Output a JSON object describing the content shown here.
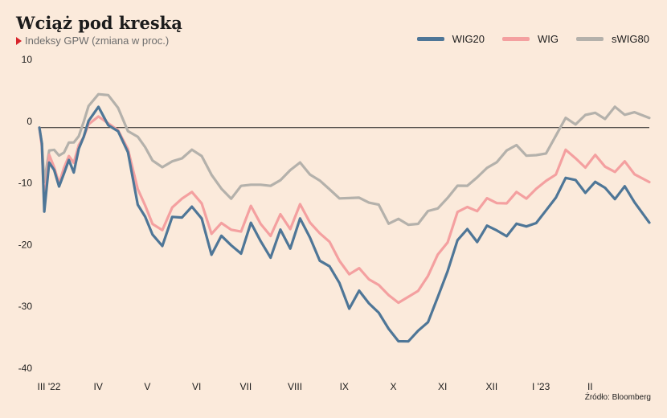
{
  "header": {
    "title": "Wciąż pod kreską",
    "subtitle": "Indeksy GPW (zmiana w proc.)"
  },
  "source": "Źródło: Bloomberg",
  "colors": {
    "wig20": "#4e7697",
    "wig": "#f4a0a0",
    "swig80": "#b4b1ab",
    "background": "#fbeadb"
  },
  "chart_data": {
    "type": "line",
    "title": "Wciąż pod kreską",
    "subtitle": "Indeksy GPW (zmiana w proc.)",
    "xlabel": "",
    "ylabel": "",
    "ylim": [
      -40,
      10
    ],
    "yticks": [
      "10",
      "0",
      "-10",
      "-20",
      "-30",
      "-40"
    ],
    "xticks": [
      "III '22",
      "IV",
      "V",
      "VI",
      "VII",
      "VIII",
      "IX",
      "X",
      "XI",
      "XII",
      "I '23",
      "II"
    ],
    "x_months": [
      0,
      1,
      2,
      3,
      4,
      5,
      6,
      7,
      8,
      9,
      10,
      11
    ],
    "grid": false,
    "zero_line": true,
    "legend": "top-right",
    "series": [
      {
        "name": "WIG20",
        "x": [
          0.0,
          0.05,
          0.1,
          0.2,
          0.3,
          0.4,
          0.5,
          0.6,
          0.7,
          0.8,
          0.9,
          1.0,
          1.2,
          1.4,
          1.6,
          1.8,
          2.0,
          2.15,
          2.3,
          2.5,
          2.7,
          2.9,
          3.1,
          3.3,
          3.5,
          3.7,
          3.9,
          4.1,
          4.3,
          4.5,
          4.7,
          4.9,
          5.1,
          5.3,
          5.5,
          5.7,
          5.9,
          6.1,
          6.3,
          6.5,
          6.7,
          6.9,
          7.1,
          7.3,
          7.5,
          7.7,
          7.9,
          8.1,
          8.3,
          8.5,
          8.7,
          8.9,
          9.1,
          9.3,
          9.5,
          9.7,
          9.9,
          10.1,
          10.3,
          10.5,
          10.7,
          10.9,
          11.1,
          11.3,
          11.5,
          11.7,
          11.9,
          12.1,
          12.4
        ],
        "values": [
          0,
          -3,
          -13,
          -6,
          -7,
          -9,
          -8,
          -5,
          -7,
          -4,
          -1,
          1,
          3,
          1,
          -1,
          -4,
          -12,
          -15,
          -17,
          -19,
          -15,
          -14,
          -13,
          -15,
          -20,
          -18,
          -19,
          -20,
          -16,
          -18,
          -21,
          -17,
          -19,
          -15,
          -18,
          -21,
          -23,
          -25,
          -29,
          -27,
          -28,
          -30,
          -33,
          -34,
          -35,
          -33,
          -31,
          -28,
          -23,
          -18,
          -17,
          -18,
          -16,
          -17,
          -17,
          -16,
          -16,
          -15,
          -14,
          -11,
          -8,
          -9,
          -10,
          -9,
          -10,
          -11,
          -10,
          -12,
          -15
        ]
      },
      {
        "name": "WIG",
        "x": [
          0.0,
          0.05,
          0.1,
          0.2,
          0.3,
          0.4,
          0.5,
          0.6,
          0.7,
          0.8,
          0.9,
          1.0,
          1.2,
          1.4,
          1.6,
          1.8,
          2.0,
          2.15,
          2.3,
          2.5,
          2.7,
          2.9,
          3.1,
          3.3,
          3.5,
          3.7,
          3.9,
          4.1,
          4.3,
          4.5,
          4.7,
          4.9,
          5.1,
          5.3,
          5.5,
          5.7,
          5.9,
          6.1,
          6.3,
          6.5,
          6.7,
          6.9,
          7.1,
          7.3,
          7.5,
          7.7,
          7.9,
          8.1,
          8.3,
          8.5,
          8.7,
          8.9,
          9.1,
          9.3,
          9.5,
          9.7,
          9.9,
          10.1,
          10.3,
          10.5,
          10.7,
          10.9,
          11.1,
          11.3,
          11.5,
          11.7,
          11.9,
          12.1,
          12.4
        ],
        "values": [
          0,
          -3,
          -12,
          -5,
          -6,
          -9,
          -7,
          -4,
          -6,
          -3,
          -1,
          0,
          2,
          1,
          -1,
          -3,
          -10,
          -13,
          -15,
          -17,
          -13,
          -11,
          -11,
          -12,
          -17,
          -16,
          -16,
          -17,
          -13,
          -15,
          -18,
          -14,
          -16,
          -13,
          -15,
          -17,
          -19,
          -21,
          -24,
          -23,
          -24,
          -26,
          -27,
          -28,
          -28,
          -26,
          -24,
          -21,
          -18,
          -14,
          -13,
          -13,
          -12,
          -12,
          -12,
          -11,
          -11,
          -10,
          -9,
          -7,
          -4,
          -5,
          -6,
          -5,
          -6,
          -7,
          -6,
          -7,
          -9
        ]
      },
      {
        "name": "sWIG80",
        "x": [
          0.0,
          0.05,
          0.1,
          0.2,
          0.3,
          0.4,
          0.5,
          0.6,
          0.7,
          0.8,
          0.9,
          1.0,
          1.2,
          1.4,
          1.6,
          1.8,
          2.0,
          2.15,
          2.3,
          2.5,
          2.7,
          2.9,
          3.1,
          3.3,
          3.5,
          3.7,
          3.9,
          4.1,
          4.3,
          4.5,
          4.7,
          4.9,
          5.1,
          5.3,
          5.5,
          5.7,
          5.9,
          6.1,
          6.3,
          6.5,
          6.7,
          6.9,
          7.1,
          7.3,
          7.5,
          7.7,
          7.9,
          8.1,
          8.3,
          8.5,
          8.7,
          8.9,
          9.1,
          9.3,
          9.5,
          9.7,
          9.9,
          10.1,
          10.3,
          10.5,
          10.7,
          10.9,
          11.1,
          11.3,
          11.5,
          11.7,
          11.9,
          12.1,
          12.4
        ],
        "values": [
          0,
          -2,
          -9,
          -4,
          -3,
          -5,
          -4,
          -2,
          -3,
          -1,
          1,
          3,
          6,
          5,
          3,
          0,
          -2,
          -3,
          -5,
          -7,
          -5,
          -5,
          -4,
          -4,
          -8,
          -10,
          -11,
          -10,
          -9,
          -9,
          -10,
          -8,
          -7,
          -6,
          -7,
          -9,
          -10,
          -11,
          -12,
          -11,
          -12,
          -13,
          -15,
          -15,
          -16,
          -15,
          -14,
          -13,
          -11,
          -10,
          -9,
          -8,
          -7,
          -5,
          -4,
          -3,
          -4,
          -5,
          -4,
          -1,
          1,
          1,
          2,
          2,
          2,
          3,
          2,
          3,
          1
        ]
      }
    ]
  }
}
